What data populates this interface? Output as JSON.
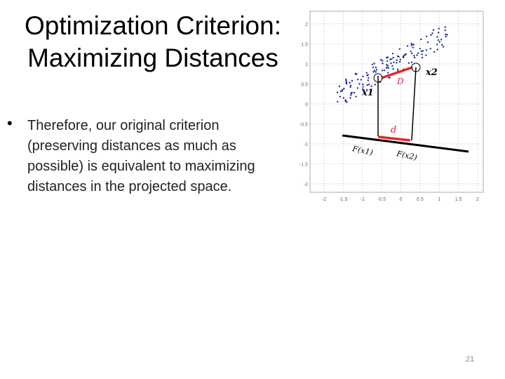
{
  "slide": {
    "title_line1": "Optimization Criterion:",
    "title_line2": "Maximizing Distances",
    "bullet_symbol": "•",
    "bullet_text": "Therefore, our original criterion (preserving distances as much as possible) is equivalent to maximizing distances in the projected space.",
    "page_number": "21"
  },
  "figure": {
    "x_ticks": [
      "-2",
      "-1.5",
      "-1",
      "-0.5",
      "0",
      "0.5",
      "1",
      "1.5",
      "2"
    ],
    "y_ticks": [
      "2",
      "1.5",
      "1",
      "0.5",
      "0",
      "-0.5",
      "-1",
      "-1.5",
      "-2"
    ],
    "labels": {
      "x1": "x1",
      "x2": "x2",
      "D": "D",
      "d": "d",
      "Fx1": "F(x1)",
      "Fx2": "F(x2)"
    },
    "colors": {
      "points": "#1f2aa8",
      "distance": "#e0282b",
      "grid": "#cfcfcf",
      "axis_line": "#000000"
    },
    "grid": true
  }
}
